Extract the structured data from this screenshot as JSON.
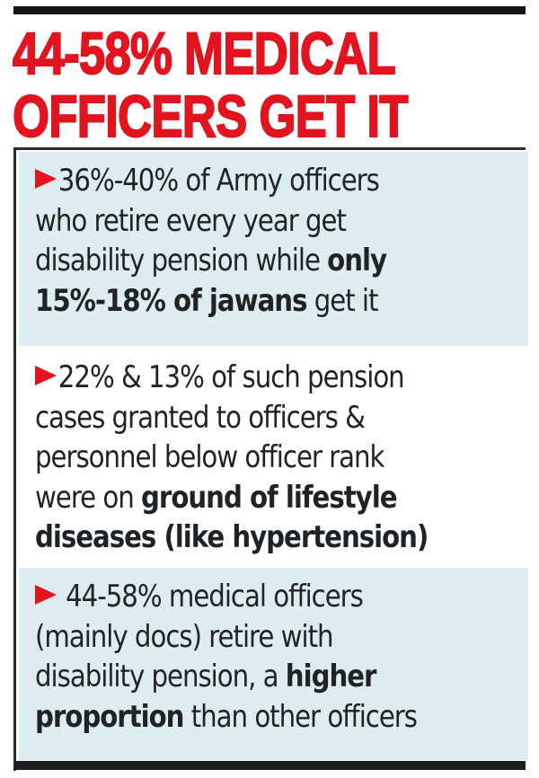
{
  "headline": {
    "line1": "44-58% MEDICAL",
    "line2": "OFFICERS GET IT",
    "color": "#e1141f"
  },
  "bullets": [
    {
      "icon": "red-arrow-bullet",
      "lines": [
        {
          "plain": "36%-40% of Army officers"
        },
        {
          "plain": "who retire every year get"
        },
        {
          "plain": "disability pension while ",
          "bold": "only"
        },
        {
          "bold": "15%-18% of jawans",
          "plain_after": " get it"
        }
      ]
    },
    {
      "icon": "red-arrow-bullet",
      "lines": [
        {
          "plain": "22% & 13% of such pension"
        },
        {
          "plain": "cases granted to officers &"
        },
        {
          "plain": "personnel below officer rank"
        },
        {
          "plain": "were on ",
          "bold": "ground of lifestyle"
        },
        {
          "bold": "diseases (like hypertension)"
        }
      ]
    },
    {
      "icon": "red-arrow-bullet",
      "lines": [
        {
          "plain": " 44-58% medical officers"
        },
        {
          "plain": "(mainly docs) retire with"
        },
        {
          "plain": "disability pension, a ",
          "bold": "higher"
        },
        {
          "bold": "proportion",
          "plain_after": " than other officers"
        }
      ]
    }
  ],
  "colors": {
    "accent_red": "#e2141f",
    "shaded_bg": "#ddedef",
    "text": "#1f2326",
    "rule": "#141414"
  }
}
